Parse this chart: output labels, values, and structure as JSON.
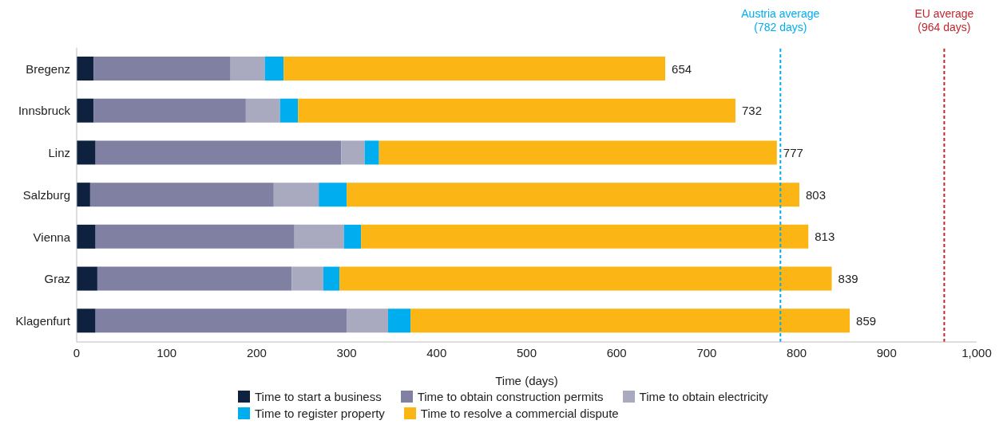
{
  "chart_data": {
    "type": "bar",
    "orientation": "horizontal",
    "stacked": true,
    "categories": [
      "Bregenz",
      "Innsbruck",
      "Linz",
      "Salzburg",
      "Vienna",
      "Graz",
      "Klagenfurt"
    ],
    "series": [
      {
        "name": "Time to start a business",
        "color": "#0e2240",
        "values": [
          19,
          19,
          21,
          15,
          21,
          23,
          21
        ]
      },
      {
        "name": "Time to obtain construction permits",
        "color": "#8080a3",
        "values": [
          152,
          169,
          273,
          204,
          221,
          216,
          279
        ]
      },
      {
        "name": "Time to obtain electricity",
        "color": "#a9a9c0",
        "values": [
          38,
          38,
          26,
          50,
          55,
          35,
          46
        ]
      },
      {
        "name": "Time to register property",
        "color": "#00aeef",
        "values": [
          21,
          20,
          16,
          31,
          19,
          18,
          25
        ]
      },
      {
        "name": "Time to resolve a commercial dispute",
        "color": "#fbb616",
        "values": [
          424,
          486,
          442,
          503,
          497,
          547,
          488
        ]
      }
    ],
    "totals": [
      "654",
      "732",
      "777",
      "803",
      "813",
      "839",
      "859"
    ],
    "xlabel": "Time (days)",
    "xlim": [
      0,
      1000
    ],
    "xticks": [
      0,
      100,
      200,
      300,
      400,
      500,
      600,
      700,
      800,
      900,
      {
        "value": 1000,
        "label": "1,000"
      }
    ],
    "ref_lines": [
      {
        "axis": "x",
        "value": 782,
        "label": "Austria average (782 days)",
        "color": "#00aeef",
        "line_style": "dashed"
      },
      {
        "axis": "x",
        "value": 964,
        "label": "EU average (964 days)",
        "color": "#c0272d",
        "line_style": "dashed"
      }
    ],
    "legend": "bottom",
    "grid": false
  }
}
